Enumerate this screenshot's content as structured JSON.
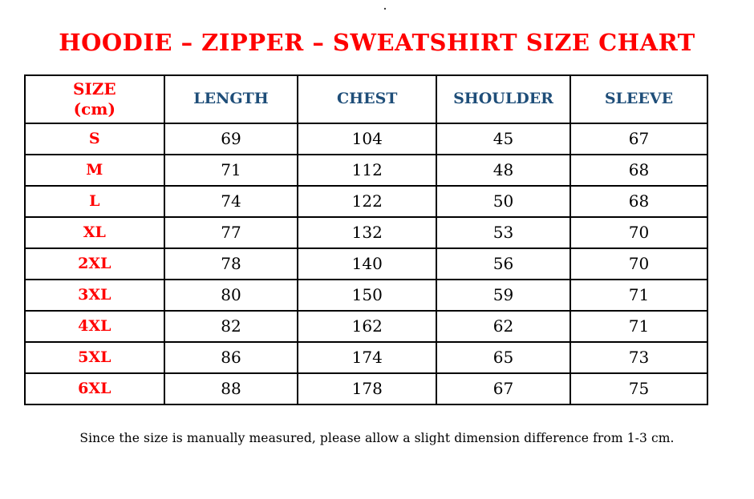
{
  "page": {
    "top_mark": ".",
    "title": "HOODIE – ZIPPER – SWEATSHIRT SIZE CHART",
    "note": "Since the size is manually measured, please allow a slight dimension difference from 1-3 cm."
  },
  "colors": {
    "title": "#FF0000",
    "header": "#1F4E79",
    "size_label": "#FF0000",
    "value": "#000000",
    "border": "#000000"
  },
  "table": {
    "columns": [
      "SIZE\n(cm)",
      "LENGTH",
      "CHEST",
      "SHOULDER",
      "SLEEVE"
    ],
    "rows": [
      [
        "S",
        "69",
        "104",
        "45",
        "67"
      ],
      [
        "M",
        "71",
        "112",
        "48",
        "68"
      ],
      [
        "L",
        "74",
        "122",
        "50",
        "68"
      ],
      [
        "XL",
        "77",
        "132",
        "53",
        "70"
      ],
      [
        "2XL",
        "78",
        "140",
        "56",
        "70"
      ],
      [
        "3XL",
        "80",
        "150",
        "59",
        "71"
      ],
      [
        "4XL",
        "82",
        "162",
        "62",
        "71"
      ],
      [
        "5XL",
        "86",
        "174",
        "65",
        "73"
      ],
      [
        "6XL",
        "88",
        "178",
        "67",
        "75"
      ]
    ]
  }
}
